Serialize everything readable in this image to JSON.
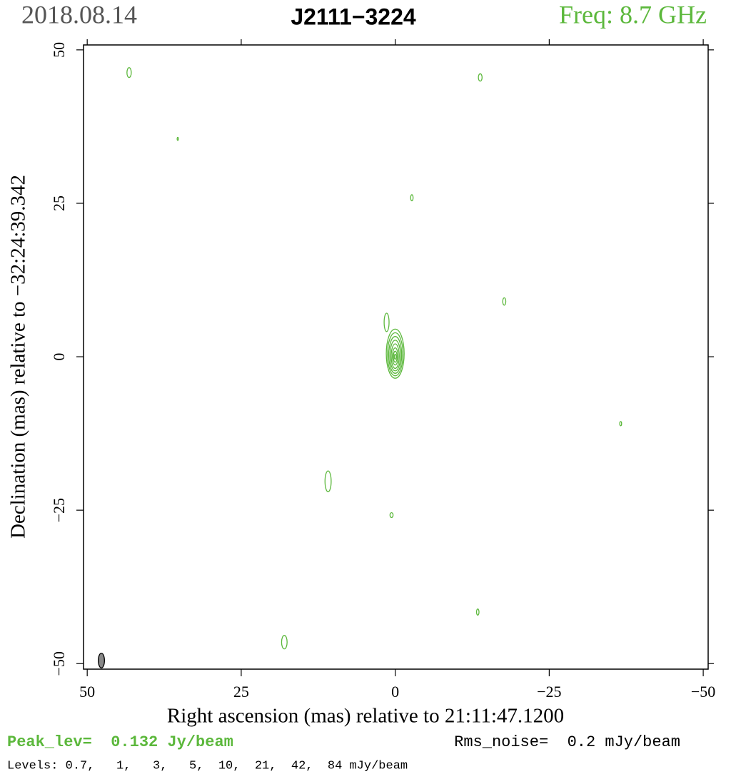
{
  "chart_data": {
    "type": "contour",
    "date": "2018.08.14",
    "title": "J2111−3224",
    "frequency": "Freq: 8.7 GHz",
    "x_label": "Right ascension (mas) relative to 21:11:47.1200",
    "y_label": "Declination (mas) relative to −32:24:39.342",
    "peak": "Peak_lev=  0.132 Jy/beam",
    "rms": "Rms_noise=  0.2 mJy/beam",
    "levels": "Levels: 0.7,   1,   3,   5,  10,  21,  42,  84 mJy/beam",
    "color": "#5cb83c",
    "xlim": [
      50.6,
      -50.8
    ],
    "ylim": [
      -50.9,
      50.8
    ],
    "xticks": [
      50,
      25,
      0,
      {
        "value": -25,
        "label": "−25"
      },
      {
        "value": -50,
        "label": "−50"
      }
    ],
    "yticks": [
      50,
      25,
      0,
      {
        "value": -25,
        "label": "−25"
      },
      {
        "value": -50,
        "label": "−50"
      }
    ],
    "contours": [
      {
        "x": 0,
        "y": 0.5,
        "rx": 1.45,
        "ry": 4.0
      },
      {
        "x": 0,
        "y": 0.4,
        "rx": 1.25,
        "ry": 3.5
      },
      {
        "x": 0,
        "y": 0.3,
        "rx": 1.05,
        "ry": 3.0
      },
      {
        "x": 0,
        "y": 0.2,
        "rx": 0.85,
        "ry": 2.5
      },
      {
        "x": 0,
        "y": 0.1,
        "rx": 0.65,
        "ry": 2.0
      },
      {
        "x": 0,
        "y": 0.05,
        "rx": 0.45,
        "ry": 1.4
      },
      {
        "x": 0,
        "y": 0,
        "rx": 0.3,
        "ry": 0.9
      },
      {
        "x": 0,
        "y": 0,
        "rx": 0.15,
        "ry": 0.4
      },
      {
        "x": 43.2,
        "y": 46.3,
        "rx": 0.35,
        "ry": 0.8
      },
      {
        "x": 35.3,
        "y": 35.5,
        "rx": 0.1,
        "ry": 0.25
      },
      {
        "x": -13.8,
        "y": 45.5,
        "rx": 0.3,
        "ry": 0.6
      },
      {
        "x": -2.7,
        "y": 25.9,
        "rx": 0.2,
        "ry": 0.5
      },
      {
        "x": -17.7,
        "y": 9.0,
        "rx": 0.25,
        "ry": 0.6
      },
      {
        "x": 1.4,
        "y": 5.6,
        "rx": 0.4,
        "ry": 1.5
      },
      {
        "x": -36.6,
        "y": -10.9,
        "rx": 0.15,
        "ry": 0.35
      },
      {
        "x": 10.9,
        "y": -20.3,
        "rx": 0.5,
        "ry": 1.7
      },
      {
        "x": 0.6,
        "y": -25.8,
        "rx": 0.25,
        "ry": 0.4
      },
      {
        "x": -13.4,
        "y": -41.6,
        "rx": 0.2,
        "ry": 0.5
      },
      {
        "x": 18.0,
        "y": -46.5,
        "rx": 0.45,
        "ry": 1.1
      }
    ],
    "beam": {
      "x": 47.7,
      "y": -49.5,
      "rx": 0.5,
      "ry": 1.2,
      "color": "#888888"
    }
  }
}
